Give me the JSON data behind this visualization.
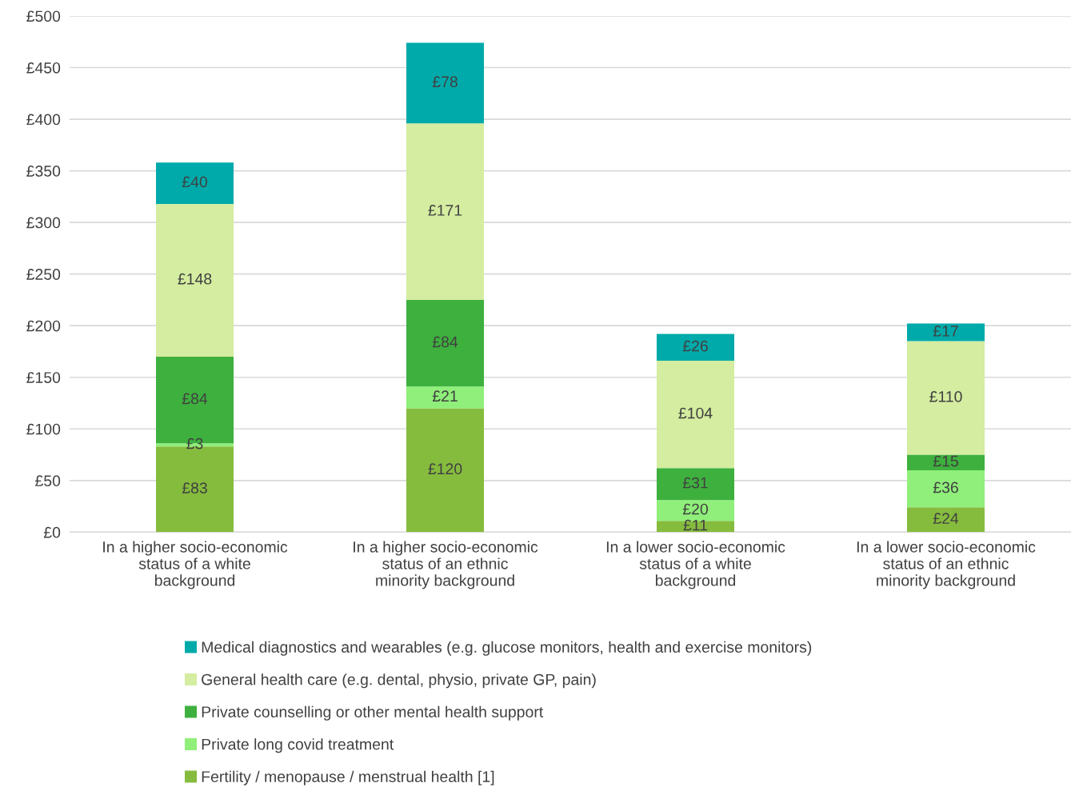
{
  "chart_data": {
    "type": "bar",
    "stacked": true,
    "categories": [
      "In a higher socio-economic status of a white background",
      "In a higher socio-economic status of an ethnic minority background",
      "In a lower socio-economic status of a white background",
      "In a lower socio-economic status of an ethnic minority background"
    ],
    "series": [
      {
        "name": "Fertility / menopause / menstrual health [1]",
        "color": "#86bc3e",
        "values": [
          83,
          120,
          11,
          24
        ],
        "value_labels": [
          "£83",
          "£120",
          "£11",
          "£24"
        ]
      },
      {
        "name": "Private long covid treatment",
        "color": "#8fef7a",
        "values": [
          3,
          21,
          20,
          36
        ],
        "value_labels": [
          "£3",
          "£21",
          "£20",
          "£36"
        ]
      },
      {
        "name": "Private counselling or other mental health support",
        "color": "#3eb03e",
        "values": [
          84,
          84,
          31,
          15
        ],
        "value_labels": [
          "£84",
          "£84",
          "£31",
          "£15"
        ]
      },
      {
        "name": "General health care (e.g. dental, physio, private GP, pain)",
        "color": "#d4eda0",
        "values": [
          148,
          171,
          104,
          110
        ],
        "value_labels": [
          "£148",
          "£171",
          "£104",
          "£110"
        ]
      },
      {
        "name": "Medical diagnostics and wearables (e.g. glucose monitors, health and exercise monitors)",
        "color": "#00aaaa",
        "values": [
          40,
          78,
          26,
          17
        ],
        "value_labels": [
          "£40",
          "£78",
          "£26",
          "£17"
        ]
      }
    ],
    "ylim": [
      0,
      500
    ],
    "yticks": [
      {
        "value": 0,
        "label": "£0"
      },
      {
        "value": 50,
        "label": "£50"
      },
      {
        "value": 100,
        "label": "£100"
      },
      {
        "value": 150,
        "label": "£150"
      },
      {
        "value": 200,
        "label": "£200"
      },
      {
        "value": 250,
        "label": "£250"
      },
      {
        "value": 300,
        "label": "£300"
      },
      {
        "value": 350,
        "label": "£350"
      },
      {
        "value": 400,
        "label": "£400"
      },
      {
        "value": 450,
        "label": "£450"
      },
      {
        "value": 500,
        "label": "£500"
      }
    ],
    "grid": "y",
    "legend": "bottom"
  }
}
